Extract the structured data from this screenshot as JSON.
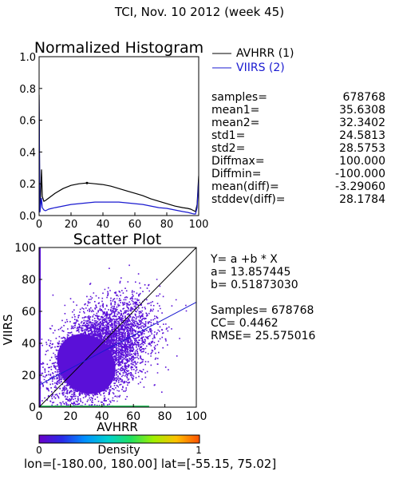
{
  "title": "TCI,  Nov. 10 2012 (week 45)",
  "colors": {
    "avhrr": "#000000",
    "viirs": "#1a1ad0",
    "scatter": "#5a10d8",
    "fit_line": "#1a1ad0",
    "frame": "#000000"
  },
  "chart_data": [
    {
      "type": "line",
      "title": "Normalized Histogram",
      "xlabel": "",
      "ylabel": "",
      "xlim": [
        0,
        100
      ],
      "ylim": [
        0,
        1.0
      ],
      "x_ticks": [
        "0",
        "20",
        "40",
        "60",
        "80",
        "100"
      ],
      "y_ticks": [
        "0.0",
        "0.2",
        "0.4",
        "0.6",
        "0.8",
        "1.0"
      ],
      "legend": "right",
      "series": [
        {
          "name": "AVHRR (1)",
          "x": [
            0,
            0.5,
            1,
            1.5,
            2,
            3,
            4,
            6,
            8,
            10,
            15,
            20,
            25,
            30,
            35,
            40,
            45,
            50,
            55,
            60,
            65,
            70,
            75,
            80,
            85,
            90,
            93,
            95,
            96,
            97,
            98,
            99,
            100
          ],
          "y": [
            0.76,
            0.03,
            0.14,
            0.29,
            0.12,
            0.09,
            0.095,
            0.11,
            0.125,
            0.14,
            0.17,
            0.19,
            0.2,
            0.205,
            0.2,
            0.195,
            0.185,
            0.17,
            0.155,
            0.14,
            0.125,
            0.105,
            0.09,
            0.075,
            0.06,
            0.05,
            0.045,
            0.04,
            0.035,
            0.03,
            0.025,
            0.07,
            0.25
          ]
        },
        {
          "name": "VIIRS (2)",
          "x": [
            0,
            0.5,
            1,
            1.5,
            2,
            3,
            4,
            6,
            8,
            10,
            15,
            20,
            25,
            30,
            35,
            40,
            45,
            50,
            55,
            60,
            65,
            70,
            75,
            80,
            85,
            90,
            93,
            95,
            96,
            97,
            98,
            99,
            100
          ],
          "y": [
            0.73,
            0.02,
            0.06,
            0.11,
            0.05,
            0.035,
            0.03,
            0.04,
            0.045,
            0.05,
            0.06,
            0.07,
            0.075,
            0.08,
            0.085,
            0.085,
            0.085,
            0.085,
            0.08,
            0.075,
            0.07,
            0.06,
            0.05,
            0.045,
            0.035,
            0.025,
            0.02,
            0.015,
            0.012,
            0.01,
            0.01,
            0.05,
            0.22
          ]
        }
      ],
      "stats": [
        {
          "label": "samples=",
          "value": "678768"
        },
        {
          "label": "mean1=",
          "value": "35.6308"
        },
        {
          "label": "mean2=",
          "value": "32.3402"
        },
        {
          "label": "std1=",
          "value": "24.5813"
        },
        {
          "label": "std2=",
          "value": "28.5753"
        },
        {
          "label": "Diffmax=",
          "value": "100.000"
        },
        {
          "label": "Diffmin=",
          "value": "-100.000"
        },
        {
          "label": "mean(diff)=",
          "value": "-3.29060"
        },
        {
          "label": "stddev(diff)=",
          "value": "28.1784"
        }
      ]
    },
    {
      "type": "scatter",
      "title": "Scatter Plot",
      "xlabel": "AVHRR",
      "ylabel": "VIIRS",
      "xlim": [
        0,
        100
      ],
      "ylim": [
        0,
        100
      ],
      "x_ticks": [
        "0",
        "20",
        "40",
        "60",
        "80",
        "100"
      ],
      "y_ticks": [
        "0",
        "20",
        "40",
        "60",
        "80",
        "100"
      ],
      "points": {
        "count": 678768,
        "mean_x": 35.6308,
        "mean_y": 32.3402,
        "std_x": 24.5813,
        "std_y": 28.5753,
        "correlation": 0.4462
      },
      "regression": {
        "a": 13.857445,
        "b": 0.5187303
      },
      "reference_line": [
        [
          0,
          0
        ],
        [
          100,
          100
        ]
      ],
      "fit_text": {
        "equation": "Y= a +b * X",
        "a": "a= 13.857445",
        "b": "b= 0.51873030",
        "samples": "Samples= 678768",
        "cc": "CC=  0.4462",
        "rmse": "RMSE= 25.575016"
      },
      "colorbar": {
        "label": "Density",
        "min": "0",
        "max": "1",
        "colors": [
          "#6a00c8",
          "#2a2ae8",
          "#0090ff",
          "#00d0d0",
          "#20e060",
          "#a0f000",
          "#ffc000",
          "#ff5000"
        ]
      }
    }
  ],
  "footer": {
    "lon": "lon=[-180.00, 180.00]",
    "lat": "lat=[-55.15, 75.02]"
  }
}
